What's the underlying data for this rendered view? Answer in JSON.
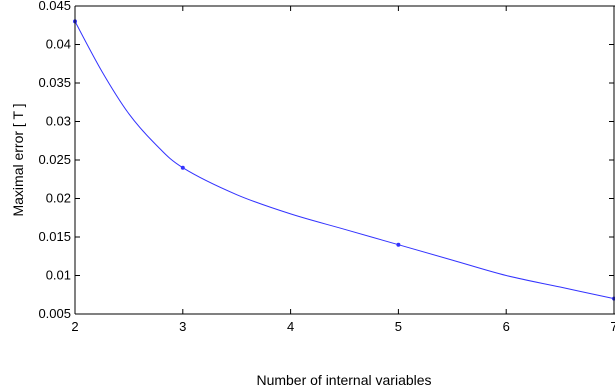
{
  "chart_data": {
    "type": "line",
    "title": "",
    "xlabel": "Number of internal variables",
    "ylabel": "Maximal error [ T ]",
    "xlim": [
      2,
      7
    ],
    "ylim": [
      0.005,
      0.045
    ],
    "x_ticks": [
      "2",
      "3",
      "4",
      "5",
      "6",
      "7"
    ],
    "y_ticks": [
      "0.005",
      "0.01",
      "0.015",
      "0.02",
      "0.025",
      "0.03",
      "0.035",
      "0.04",
      "0.045"
    ],
    "grid": false,
    "legend": "none",
    "series": [
      {
        "color": "#3333ff",
        "markers": [
          [
            2,
            0.043
          ],
          [
            3,
            0.024
          ],
          [
            5,
            0.014
          ],
          [
            7,
            0.007
          ]
        ],
        "curve": [
          [
            2,
            0.043
          ],
          [
            2.25,
            0.0365
          ],
          [
            2.5,
            0.031
          ],
          [
            2.75,
            0.027
          ],
          [
            3,
            0.024
          ],
          [
            3.5,
            0.0205
          ],
          [
            4,
            0.018
          ],
          [
            4.5,
            0.016
          ],
          [
            5,
            0.014
          ],
          [
            5.5,
            0.012
          ],
          [
            6,
            0.01
          ],
          [
            6.5,
            0.0085
          ],
          [
            7,
            0.007
          ]
        ]
      }
    ]
  }
}
